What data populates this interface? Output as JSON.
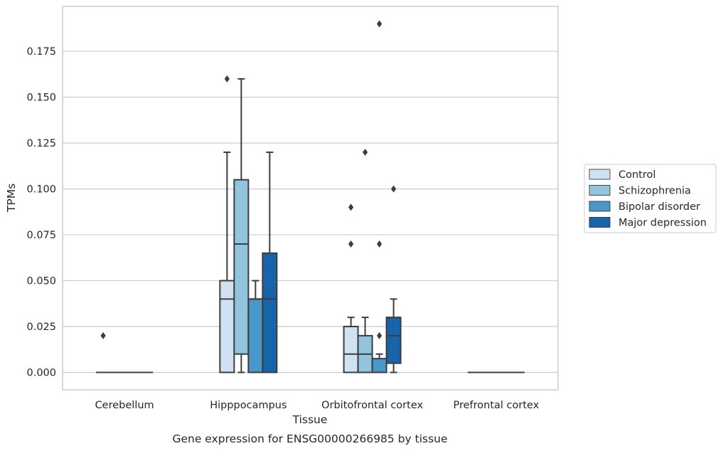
{
  "chart_data": {
    "type": "box",
    "title": "Gene expression for ENSG00000266985 by tissue",
    "xlabel": "Tissue",
    "ylabel": "TPMs",
    "ylim": [
      -0.0095,
      0.1995
    ],
    "yticks": [
      0.0,
      0.025,
      0.05,
      0.075,
      0.1,
      0.125,
      0.15,
      0.175
    ],
    "ytick_labels": [
      "0.000",
      "0.025",
      "0.050",
      "0.075",
      "0.100",
      "0.125",
      "0.150",
      "0.175"
    ],
    "grid": "horizontal",
    "legend_position": "right",
    "categories": [
      "Cerebellum",
      "Hipppocampus",
      "Orbitofrontal cortex",
      "Prefrontal cortex"
    ],
    "series": [
      {
        "name": "Control",
        "color": "#cfe1f2",
        "boxes": [
          {
            "q1": 0,
            "median": 0,
            "q3": 0,
            "whislo": 0,
            "whishi": 0,
            "fliers": [
              0.02
            ]
          },
          {
            "q1": 0,
            "median": 0.04,
            "q3": 0.05,
            "whislo": 0,
            "whishi": 0.12,
            "fliers": [
              0.16
            ]
          },
          {
            "q1": 0,
            "median": 0.01,
            "q3": 0.025,
            "whislo": 0,
            "whishi": 0.03,
            "fliers": [
              0.07,
              0.09
            ]
          },
          {
            "q1": 0,
            "median": 0,
            "q3": 0,
            "whislo": 0,
            "whishi": 0,
            "fliers": []
          }
        ]
      },
      {
        "name": "Schizophrenia",
        "color": "#93c4de",
        "boxes": [
          {
            "q1": 0,
            "median": 0,
            "q3": 0,
            "whislo": 0,
            "whishi": 0,
            "fliers": []
          },
          {
            "q1": 0.01,
            "median": 0.07,
            "q3": 0.105,
            "whislo": 0,
            "whishi": 0.16,
            "fliers": []
          },
          {
            "q1": 0,
            "median": 0.01,
            "q3": 0.02,
            "whislo": 0,
            "whishi": 0.03,
            "fliers": [
              0.12
            ]
          },
          {
            "q1": 0,
            "median": 0,
            "q3": 0,
            "whislo": 0,
            "whishi": 0,
            "fliers": []
          }
        ]
      },
      {
        "name": "Bipolar disorder",
        "color": "#4a98c9",
        "boxes": [
          {
            "q1": 0,
            "median": 0,
            "q3": 0,
            "whislo": 0,
            "whishi": 0,
            "fliers": []
          },
          {
            "q1": 0,
            "median": 0.04,
            "q3": 0.04,
            "whislo": 0,
            "whishi": 0.05,
            "fliers": []
          },
          {
            "q1": 0,
            "median": 0,
            "q3": 0.0075,
            "whislo": 0,
            "whishi": 0.01,
            "fliers": [
              0.02,
              0.07,
              0.19
            ]
          },
          {
            "q1": 0,
            "median": 0,
            "q3": 0,
            "whislo": 0,
            "whishi": 0,
            "fliers": []
          }
        ]
      },
      {
        "name": "Major depression",
        "color": "#1764ab",
        "boxes": [
          {
            "q1": 0,
            "median": 0,
            "q3": 0,
            "whislo": 0,
            "whishi": 0,
            "fliers": []
          },
          {
            "q1": 0,
            "median": 0.04,
            "q3": 0.065,
            "whislo": 0,
            "whishi": 0.12,
            "fliers": []
          },
          {
            "q1": 0.005,
            "median": 0.02,
            "q3": 0.03,
            "whislo": 0,
            "whishi": 0.04,
            "fliers": [
              0.1
            ]
          },
          {
            "q1": 0,
            "median": 0,
            "q3": 0,
            "whislo": 0,
            "whishi": 0,
            "fliers": []
          }
        ]
      }
    ]
  }
}
